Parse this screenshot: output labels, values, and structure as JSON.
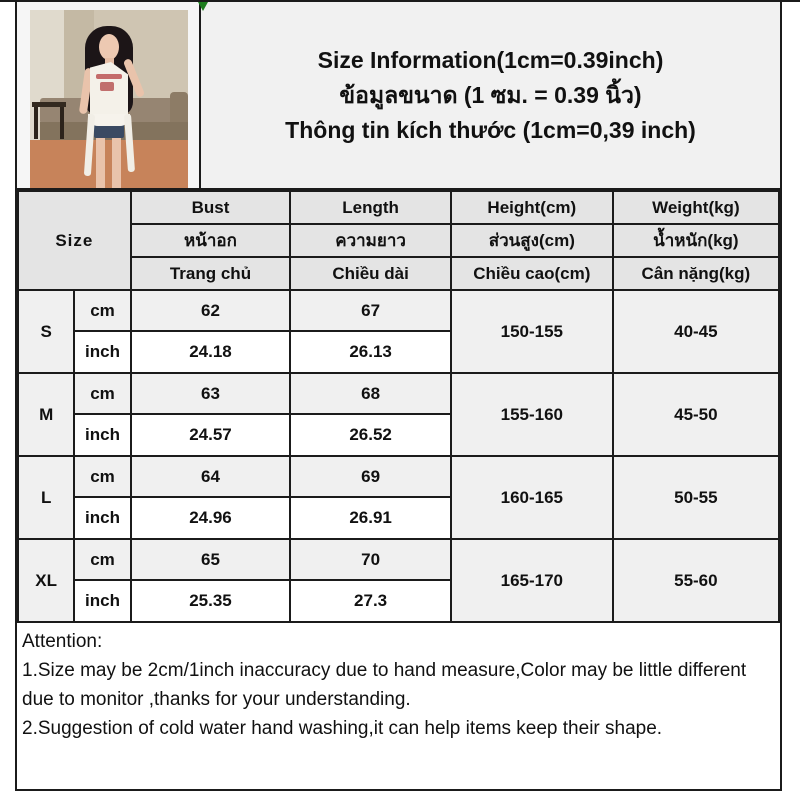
{
  "title": {
    "line_en": "Size Information(1cm=0.39inch)",
    "line_th": "ข้อมูลขนาด (1 ซม. = 0.39 นิ้ว)",
    "line_vi": "Thông tin kích thước (1cm=0,39 inch)"
  },
  "photo": {
    "description": "model wearing white one-shoulder ruffle tank top with red print and denim shorts, standing in front of a sofa"
  },
  "colors": {
    "border": "#1b1b1b",
    "green_mark": "#1e7d1e",
    "header_gray": "#e4e4e4",
    "size_gray": "#d6d6d6",
    "row_light_gray": "#f0f0f0",
    "title_bg": "#f1f1f1"
  },
  "table": {
    "size_header": "Size",
    "columns": [
      {
        "en": "Bust",
        "th": "หน้าอก",
        "vi": "Trang chủ"
      },
      {
        "en": "Length",
        "th": "ความยาว",
        "vi": "Chiều dài"
      },
      {
        "en": "Height(cm)",
        "th": "ส่วนสูง(cm)",
        "vi": "Chiều cao(cm)"
      },
      {
        "en": "Weight(kg)",
        "th": "น้ำหนัก(kg)",
        "vi": "Cân nặng(kg)"
      }
    ],
    "unit_labels": {
      "cm": "cm",
      "inch": "inch"
    },
    "rows": [
      {
        "size": "S",
        "cm": [
          "62",
          "67"
        ],
        "inch": [
          "24.18",
          "26.13"
        ],
        "height": "150-155",
        "weight": "40-45"
      },
      {
        "size": "M",
        "cm": [
          "63",
          "68"
        ],
        "inch": [
          "24.57",
          "26.52"
        ],
        "height": "155-160",
        "weight": "45-50"
      },
      {
        "size": "L",
        "cm": [
          "64",
          "69"
        ],
        "inch": [
          "24.96",
          "26.91"
        ],
        "height": "160-165",
        "weight": "50-55"
      },
      {
        "size": "XL",
        "cm": [
          "65",
          "70"
        ],
        "inch": [
          "25.35",
          "27.3"
        ],
        "height": "165-170",
        "weight": "55-60"
      }
    ]
  },
  "attention": {
    "heading": "Attention:",
    "notes": [
      "1.Size may be 2cm/1inch inaccuracy due to hand measure,Color may be little different due to monitor ,thanks for your understanding.",
      "2.Suggestion of cold water hand washing,it can help items keep their shape."
    ]
  }
}
